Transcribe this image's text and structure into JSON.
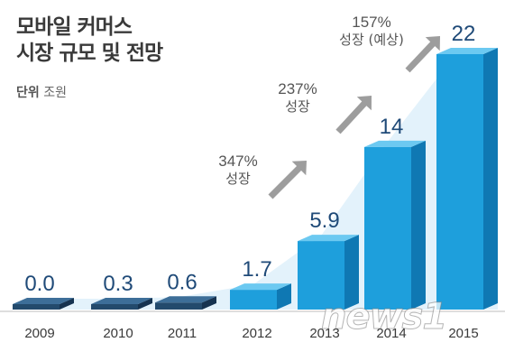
{
  "header": {
    "title_line1": "모바일 커머스",
    "title_line2": "시장 규모 및 전망",
    "unit_label": "단위",
    "unit_value": "조원"
  },
  "watermark": "news1",
  "chart_data": {
    "type": "bar",
    "categories": [
      "2009",
      "2010",
      "2011",
      "2012",
      "2013",
      "2014",
      "2015"
    ],
    "values": [
      0.0,
      0.3,
      0.6,
      1.7,
      5.9,
      14,
      22
    ],
    "value_labels": [
      "0.0",
      "0.3",
      "0.6",
      "1.7",
      "5.9",
      "14",
      "22"
    ],
    "title": "모바일 커머스 시장 규모 및 전망",
    "ylabel": "",
    "xlabel": "",
    "ylim": [
      0,
      22
    ],
    "grid": false,
    "annotations": [
      {
        "from": "2012",
        "to": "2013",
        "line1": "347%",
        "line2": "성장"
      },
      {
        "from": "2013",
        "to": "2014",
        "line1": "237%",
        "line2": "성장"
      },
      {
        "from": "2014",
        "to": "2015",
        "line1": "157%",
        "line2": "성장 (예상)"
      }
    ],
    "colors": {
      "dark_front": "#234a6c",
      "dark_top": "#3d6e98",
      "dark_side": "#163350",
      "light_front": "#1e9fdc",
      "light_top": "#6cc9f1",
      "light_side": "#0f78b3",
      "value_text": "#1f4a78",
      "arrow": "#9d9d9d",
      "area": "#e3f2fb"
    }
  }
}
